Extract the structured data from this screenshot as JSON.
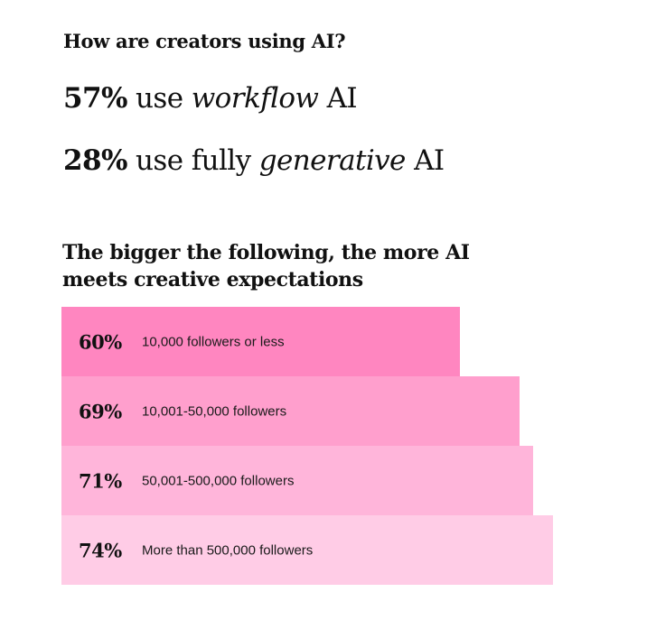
{
  "question": "How are creators using AI?",
  "stats": [
    {
      "pct": "57%",
      "pre": " use ",
      "em": "workflow",
      "post": " AI"
    },
    {
      "pct": "28%",
      "pre": " use fully ",
      "em": "generative",
      "post": " AI"
    }
  ],
  "chart_data": {
    "type": "bar",
    "orientation": "horizontal",
    "title": "The bigger the following, the more AI meets creative expectations",
    "categories": [
      "10,000 followers or less",
      "10,001-50,000 followers",
      "50,001-500,000 followers",
      "More than 500,000 followers"
    ],
    "values": [
      60,
      69,
      71,
      74
    ],
    "value_labels": [
      "60%",
      "69%",
      "71%",
      "74%"
    ],
    "colors": [
      "#ff86c0",
      "#ff9fcd",
      "#ffb5da",
      "#ffcce6"
    ]
  }
}
